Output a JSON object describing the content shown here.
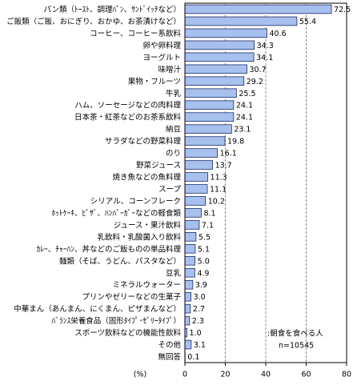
{
  "chart_data": {
    "type": "barh",
    "categories": [
      "パン類（ﾄｰｽﾄ、調理ﾊﾟﾝ、ｻﾝﾄﾞｲｯﾁなど）",
      "ご飯類（ご飯、おにぎり、おかゆ、お茶漬けなど）",
      "コーヒー、コーヒー系飲料",
      "卵や卵料理",
      "ヨーグルト",
      "味噌汁",
      "果物・フルーツ",
      "牛乳",
      "ハム、ソーセージなどの肉料理",
      "日本茶・紅茶などのお茶系飲料",
      "納豆",
      "サラダなどの野菜料理",
      "のり",
      "野菜ジュース",
      "焼き魚などの魚料理",
      "スープ",
      "シリアル、コーンフレーク",
      "ﾎｯﾄｹｰｷ、ﾋﾟｻﾞ、ﾊﾝﾊﾞｰｶﾞｰなどの軽食類",
      "ジュース・果汁飲料",
      "乳飲料・乳酸菌入り飲料",
      "ｶﾚｰ、ﾁｬｰﾊﾝ、丼などのご飯ものの単品料理",
      "麺類（そば、うどん、パスタなど）",
      "豆乳",
      "ミネラルウォーター",
      "プリンやゼリーなどの生菓子",
      "中華まん（あんまん、にくまん、ピザまんなど）",
      "ﾊﾞﾗﾝｽ栄養食品（固形ﾀｲﾌﾟ･ｾﾞﾘｰﾀｲﾌﾟ）",
      "スポーツ飲料などの機能性飲料",
      "その他",
      "無回答"
    ],
    "series": [
      {
        "name": ":朝食を食べる人",
        "color": "#a8c0ee",
        "values": [
          72.5,
          55.4,
          40.6,
          34.3,
          34.1,
          30.7,
          29.2,
          25.5,
          24.1,
          24.1,
          23.1,
          19.8,
          16.1,
          13.7,
          11.3,
          11.1,
          10.2,
          8.1,
          7.1,
          5.5,
          5.1,
          5,
          4.9,
          3.9,
          3,
          2.7,
          2.3,
          1,
          3.1,
          0.1
        ],
        "value_labels": [
          "72.5",
          "55.4",
          "40.6",
          "34.3",
          "34.1",
          "30.7",
          "29.2",
          "25.5",
          "24.1",
          "24.1",
          "23.1",
          "19.8",
          "16.1",
          "13.7",
          "11.3",
          "11.1",
          "10.2",
          "8.1",
          "7.1",
          "5.5",
          "5.1",
          "5.0",
          "4.9",
          "3.9",
          "3.0",
          "2.7",
          "2.3",
          "1.0",
          "3.1",
          "0.1"
        ]
      }
    ],
    "xlabel": "(%)",
    "note": "n=10545",
    "xlim": [
      0,
      80
    ],
    "xticks": [
      0,
      20,
      40,
      60,
      80
    ],
    "grid": true
  }
}
